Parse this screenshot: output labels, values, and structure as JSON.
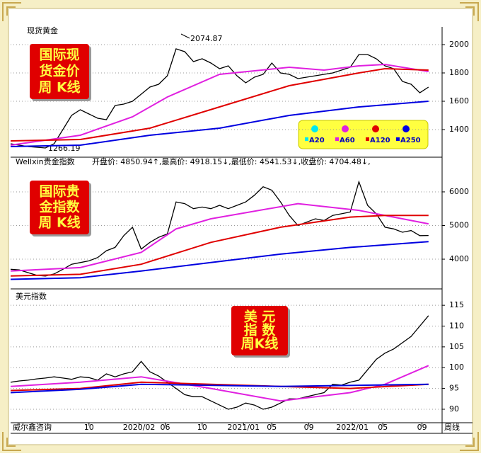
{
  "chart_data": [
    {
      "type": "line",
      "title": "现货黄金",
      "box": [
        "国际现",
        "货金价",
        "周  K线"
      ],
      "annotations": [
        {
          "text": "2074.87"
        },
        {
          "text": "1266.19"
        }
      ],
      "legend": [
        {
          "name": "A20",
          "color": "#00e8f0"
        },
        {
          "name": "A60",
          "color": "#e020e0"
        },
        {
          "name": "A120",
          "color": "#e00000"
        },
        {
          "name": "A250",
          "color": "#0000e0"
        }
      ],
      "xlim": [
        0,
        194
      ],
      "ylim": [
        1215,
        2115
      ],
      "yticks": [
        1400,
        1600,
        1800,
        2000
      ],
      "grid": true,
      "x": [
        0,
        4,
        8,
        12,
        16,
        20,
        24,
        28,
        32,
        36,
        40,
        44,
        48,
        52,
        56,
        60,
        64,
        68,
        72,
        76,
        80,
        84,
        88,
        92,
        96,
        100,
        104,
        108,
        112,
        116,
        120,
        124,
        128,
        132,
        136,
        140,
        144,
        148,
        152,
        156,
        160,
        164,
        168,
        172,
        176,
        180,
        184,
        188,
        192
      ],
      "series": [
        {
          "color": "#000000",
          "values": [
            1300,
            1290,
            1280,
            1275,
            1270,
            1300,
            1400,
            1500,
            1540,
            1510,
            1480,
            1470,
            1570,
            1580,
            1600,
            1650,
            1700,
            1720,
            1780,
            1970,
            1950,
            1880,
            1900,
            1870,
            1830,
            1850,
            1780,
            1730,
            1770,
            1790,
            1870,
            1800,
            1790,
            1760,
            1770,
            1780,
            1790,
            1800,
            1820,
            1840,
            1930,
            1930,
            1900,
            1850,
            1830,
            1740,
            1720,
            1660,
            1700
          ]
        },
        {
          "color": "#e020e0",
          "x": [
            0,
            32,
            56,
            72,
            96,
            128,
            144,
            160,
            172,
            192
          ],
          "values": [
            1290,
            1360,
            1490,
            1630,
            1790,
            1840,
            1820,
            1850,
            1860,
            1810
          ]
        },
        {
          "color": "#e00000",
          "x": [
            0,
            32,
            64,
            96,
            128,
            160,
            172,
            192
          ],
          "values": [
            1320,
            1330,
            1410,
            1560,
            1710,
            1800,
            1830,
            1820
          ]
        },
        {
          "color": "#0000e0",
          "x": [
            0,
            32,
            64,
            96,
            128,
            160,
            192
          ],
          "values": [
            1280,
            1290,
            1360,
            1410,
            1500,
            1560,
            1600
          ]
        }
      ]
    },
    {
      "type": "line",
      "title": "Wellxin贵金指数",
      "subtitle": "开盘价: 4850.94↑,最高价: 4918.15↓,最低价: 4541.53↓,收盘价: 4704.48↓,",
      "box": [
        "国际贵",
        "金指数",
        "周  K线"
      ],
      "xlim": [
        0,
        194
      ],
      "ylim": [
        3180,
        6820
      ],
      "yticks": [
        4000,
        5000,
        6000
      ],
      "grid": true,
      "x": [
        0,
        4,
        8,
        12,
        16,
        20,
        24,
        28,
        32,
        36,
        40,
        44,
        48,
        52,
        56,
        60,
        64,
        68,
        72,
        76,
        80,
        84,
        88,
        92,
        96,
        100,
        104,
        108,
        112,
        116,
        120,
        124,
        128,
        132,
        136,
        140,
        144,
        148,
        152,
        156,
        160,
        164,
        168,
        172,
        176,
        180,
        184,
        188,
        192
      ],
      "series": [
        {
          "color": "#000000",
          "values": [
            3700,
            3680,
            3600,
            3520,
            3500,
            3560,
            3700,
            3850,
            3900,
            3950,
            4050,
            4250,
            4350,
            4700,
            4950,
            4300,
            4500,
            4650,
            4750,
            5700,
            5650,
            5500,
            5550,
            5500,
            5600,
            5500,
            5600,
            5700,
            5900,
            6150,
            6050,
            5700,
            5300,
            5000,
            5100,
            5200,
            5150,
            5300,
            5350,
            5400,
            6300,
            5600,
            5350,
            4950,
            4900,
            4800,
            4850,
            4700,
            4704
          ]
        },
        {
          "color": "#e020e0",
          "x": [
            0,
            32,
            60,
            76,
            92,
            132,
            160,
            176,
            192
          ],
          "values": [
            3650,
            3750,
            4200,
            4900,
            5200,
            5650,
            5450,
            5250,
            5050
          ]
        },
        {
          "color": "#e00000",
          "x": [
            0,
            32,
            60,
            92,
            124,
            156,
            172,
            192
          ],
          "values": [
            3500,
            3550,
            3850,
            4500,
            4950,
            5250,
            5300,
            5300
          ]
        },
        {
          "color": "#0000e0",
          "x": [
            0,
            32,
            60,
            92,
            124,
            156,
            192
          ],
          "values": [
            3400,
            3450,
            3650,
            3900,
            4150,
            4350,
            4520
          ]
        }
      ]
    },
    {
      "type": "line",
      "title": "美元指数",
      "box": [
        "美  元",
        "指  数",
        "周K线"
      ],
      "footer_left": "威尔鑫咨询",
      "footer_right": "周线",
      "xlim": [
        0,
        194
      ],
      "ylim": [
        87.1,
        118.6
      ],
      "yticks": [
        90,
        95,
        100,
        105,
        110,
        115
      ],
      "grid": true,
      "xticks": [
        {
          "value": 36,
          "label": "10"
        },
        {
          "value": 59,
          "label": "2020/02"
        },
        {
          "value": 71,
          "label": "06"
        },
        {
          "value": 88,
          "label": "10"
        },
        {
          "value": 107,
          "label": "2021/01"
        },
        {
          "value": 120,
          "label": "05"
        },
        {
          "value": 137,
          "label": "09"
        },
        {
          "value": 157,
          "label": "2022/01"
        },
        {
          "value": 171,
          "label": "05"
        },
        {
          "value": 189,
          "label": "09"
        }
      ],
      "x": [
        0,
        4,
        8,
        12,
        16,
        20,
        24,
        28,
        32,
        36,
        40,
        44,
        48,
        52,
        56,
        60,
        64,
        68,
        72,
        76,
        80,
        84,
        88,
        92,
        96,
        100,
        104,
        108,
        112,
        116,
        120,
        124,
        128,
        132,
        136,
        140,
        144,
        148,
        152,
        156,
        160,
        164,
        168,
        172,
        176,
        180,
        184,
        188,
        192
      ],
      "series": [
        {
          "color": "#000000",
          "values": [
            96.5,
            96.8,
            97,
            97.3,
            97.5,
            97.8,
            97.5,
            97.2,
            97.8,
            97.6,
            97,
            98.5,
            97.8,
            98.5,
            99,
            101.5,
            99,
            98,
            96.5,
            95,
            93.5,
            93,
            93,
            92,
            91,
            90,
            90.5,
            91.5,
            91,
            90,
            90.5,
            91.5,
            92.5,
            92.5,
            93,
            93.5,
            94,
            96,
            95.8,
            96.5,
            97,
            99.5,
            102,
            103.5,
            104.5,
            106,
            107.5,
            110,
            112.5
          ]
        },
        {
          "color": "#e020e0",
          "x": [
            0,
            32,
            60,
            92,
            124,
            156,
            172,
            192
          ],
          "values": [
            95.5,
            96.5,
            97.8,
            95,
            92,
            94,
            96,
            100.5
          ]
        },
        {
          "color": "#e00000",
          "x": [
            0,
            32,
            60,
            92,
            124,
            156,
            192
          ],
          "values": [
            94.5,
            95,
            96.5,
            96,
            95.5,
            95,
            96
          ]
        },
        {
          "color": "#0000e0",
          "x": [
            0,
            32,
            60,
            124,
            192
          ],
          "values": [
            94,
            94.8,
            96,
            95.5,
            96
          ]
        }
      ]
    }
  ]
}
